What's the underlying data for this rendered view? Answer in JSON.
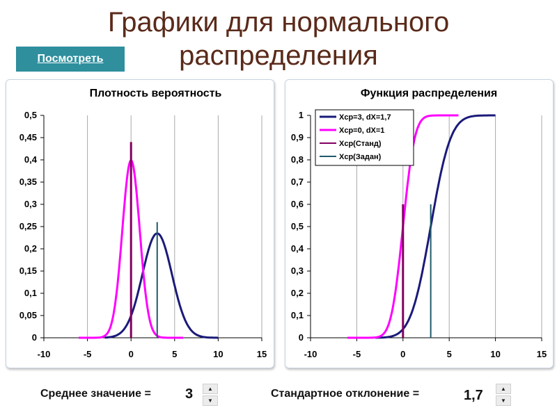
{
  "page": {
    "title": "Графики для нормального распределения",
    "view_button": "Посмотреть"
  },
  "controls": {
    "mean_label": "Среднее значение =",
    "mean_value": "3",
    "sd_label": "Стандартное отклонение =",
    "sd_value": "1,7"
  },
  "chart_data": [
    {
      "type": "line",
      "title": "Плотность вероятность",
      "xlim": [
        -10,
        15
      ],
      "ylim": [
        0,
        0.5
      ],
      "x_ticks": [
        "-10",
        "-5",
        "0",
        "5",
        "10",
        "15"
      ],
      "y_ticks": [
        "0",
        "0,05",
        "0,1",
        "0,15",
        "0,2",
        "0,25",
        "0,3",
        "0,35",
        "0,4",
        "0,45",
        "0,5"
      ],
      "grid": "vertical",
      "series": [
        {
          "name": "Хср=3, dX=1,7",
          "kind": "normal_pdf",
          "mean": 3,
          "sd": 1.7,
          "x_range": [
            -3,
            10
          ],
          "color": "#1a1a7a"
        },
        {
          "name": "Хср=0, dX=1",
          "kind": "normal_pdf",
          "mean": 0,
          "sd": 1,
          "x_range": [
            -6,
            6
          ],
          "color": "#ff00ff"
        },
        {
          "name": "Хср(Станд)",
          "kind": "vline",
          "x": 0,
          "y": [
            0,
            0.44
          ],
          "color": "#800060"
        },
        {
          "name": "Хср(Задан)",
          "kind": "vline",
          "x": 3,
          "y": [
            0,
            0.26
          ],
          "color": "#1f5a6a"
        }
      ]
    },
    {
      "type": "line",
      "title": "Функция распределения",
      "xlim": [
        -10,
        15
      ],
      "ylim": [
        0,
        1
      ],
      "x_ticks": [
        "-10",
        "-5",
        "0",
        "5",
        "10",
        "15"
      ],
      "y_ticks": [
        "0",
        "0,1",
        "0,2",
        "0,3",
        "0,4",
        "0,5",
        "0,6",
        "0,7",
        "0,8",
        "0,9",
        "1"
      ],
      "grid": "vertical",
      "legend": "top-left",
      "series": [
        {
          "name": "Хср=3, dX=1,7",
          "kind": "normal_cdf",
          "mean": 3,
          "sd": 1.7,
          "x_range": [
            -3,
            10
          ],
          "color": "#1a1a7a"
        },
        {
          "name": "Хср=0, dX=1",
          "kind": "normal_cdf",
          "mean": 0,
          "sd": 1,
          "x_range": [
            -6,
            6
          ],
          "color": "#ff00ff"
        },
        {
          "name": "Хср(Станд)",
          "kind": "vline",
          "x": 0,
          "y": [
            0,
            0.6
          ],
          "color": "#800060"
        },
        {
          "name": "Хср(Задан)",
          "kind": "vline",
          "x": 3,
          "y": [
            0,
            0.6
          ],
          "color": "#1f5a6a"
        }
      ]
    }
  ]
}
